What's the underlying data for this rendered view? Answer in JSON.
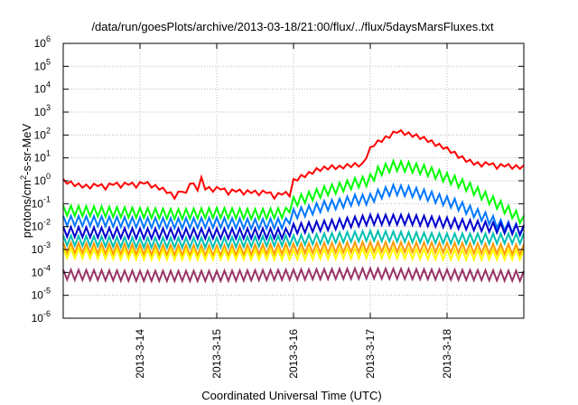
{
  "chart_data": {
    "type": "line",
    "title": "/data/run/goesPlots/archive/2013-03-18/21:00/flux/../flux/5daysMarsFluxes.txt",
    "xlabel": "Coordinated Universal Time (UTC)",
    "ylabel": {
      "prefix": "protons/cm",
      "sup": "2",
      "suffix": "-s-sr-MeV"
    },
    "yscale": "log",
    "ylim": [
      1e-06,
      1000000.0
    ],
    "xlim": [
      0,
      6
    ],
    "grid": true,
    "x_ticks": [
      {
        "value": 1,
        "label": "2013-3-14"
      },
      {
        "value": 2,
        "label": "2013-3-15"
      },
      {
        "value": 3,
        "label": "2013-3-16"
      },
      {
        "value": 4,
        "label": "2013-3-17"
      },
      {
        "value": 5,
        "label": "2013-3-18"
      }
    ],
    "y_ticks": [
      {
        "value": 1e-06,
        "base": "10",
        "exp": "-6"
      },
      {
        "value": 1e-05,
        "base": "10",
        "exp": "-5"
      },
      {
        "value": 0.0001,
        "base": "10",
        "exp": "-4"
      },
      {
        "value": 0.001,
        "base": "10",
        "exp": "-3"
      },
      {
        "value": 0.01,
        "base": "10",
        "exp": "-2"
      },
      {
        "value": 0.1,
        "base": "10",
        "exp": "-1"
      },
      {
        "value": 1,
        "base": "10",
        "exp": "0"
      },
      {
        "value": 10,
        "base": "10",
        "exp": "1"
      },
      {
        "value": 100,
        "base": "10",
        "exp": "2"
      },
      {
        "value": 1000,
        "base": "10",
        "exp": "3"
      },
      {
        "value": 10000,
        "base": "10",
        "exp": "4"
      },
      {
        "value": 100000,
        "base": "10",
        "exp": "5"
      },
      {
        "value": 1000000,
        "base": "10",
        "exp": "6"
      }
    ],
    "series": [
      {
        "color": "#ff0000",
        "x": [
          0,
          0.15,
          0.25,
          0.35,
          0.45,
          0.55,
          0.65,
          0.75,
          0.85,
          0.95,
          1.05,
          1.15,
          1.25,
          1.35,
          1.45,
          1.55,
          1.6,
          1.65,
          1.75,
          1.8,
          1.85,
          1.95,
          2.05,
          2.15,
          2.25,
          2.35,
          2.45,
          2.55,
          2.65,
          2.75,
          2.85,
          2.95,
          3.0,
          3.1,
          3.2,
          3.3,
          3.4,
          3.5,
          3.6,
          3.7,
          3.8,
          3.9,
          3.98,
          4.05,
          4.15,
          4.25,
          4.35,
          4.45,
          4.55,
          4.65,
          4.75,
          4.85,
          4.95,
          5.05,
          5.15,
          5.25,
          5.35,
          5.45,
          5.55,
          5.65,
          5.75,
          5.85,
          6.0
        ],
        "y": [
          1.0,
          0.7,
          0.6,
          0.55,
          0.7,
          0.5,
          0.8,
          0.6,
          0.8,
          0.6,
          0.9,
          0.6,
          0.5,
          0.35,
          0.2,
          0.4,
          0.25,
          0.9,
          0.45,
          1.2,
          0.5,
          0.4,
          0.5,
          0.3,
          0.4,
          0.3,
          0.35,
          0.28,
          0.35,
          0.2,
          0.3,
          0.25,
          1.0,
          1.5,
          2.0,
          3.0,
          3.5,
          4.0,
          3.8,
          4.5,
          5.0,
          5.0,
          20,
          40,
          60,
          90,
          150,
          120,
          100,
          80,
          60,
          40,
          30,
          20,
          12,
          8,
          6,
          5,
          6,
          4,
          5,
          4,
          4
        ]
      },
      {
        "color": "#00ff00",
        "x": [
          0,
          0.5,
          1.0,
          1.5,
          2.0,
          2.5,
          2.9,
          3.0,
          3.2,
          3.4,
          3.6,
          3.8,
          3.98,
          4.1,
          4.3,
          4.5,
          4.7,
          4.9,
          5.1,
          5.3,
          5.5,
          5.7,
          5.9,
          6.0
        ],
        "y": [
          0.05,
          0.045,
          0.04,
          0.035,
          0.04,
          0.035,
          0.04,
          0.12,
          0.2,
          0.35,
          0.5,
          0.8,
          1.0,
          2.5,
          4.5,
          4.0,
          3.0,
          1.8,
          1.0,
          0.5,
          0.2,
          0.08,
          0.03,
          0.018
        ]
      },
      {
        "color": "#0077ff",
        "x": [
          0,
          0.5,
          1.0,
          1.5,
          2.0,
          2.5,
          2.9,
          3.0,
          3.2,
          3.4,
          3.6,
          3.8,
          3.98,
          4.1,
          4.3,
          4.5,
          4.7,
          4.9,
          5.1,
          5.3,
          5.5,
          5.7,
          5.9,
          6.0
        ],
        "y": [
          0.018,
          0.017,
          0.015,
          0.014,
          0.015,
          0.013,
          0.014,
          0.035,
          0.05,
          0.08,
          0.1,
          0.15,
          0.15,
          0.25,
          0.4,
          0.35,
          0.25,
          0.16,
          0.1,
          0.05,
          0.025,
          0.012,
          0.008,
          0.006
        ]
      },
      {
        "color": "#0000cc",
        "x": [
          0,
          1.0,
          2.0,
          2.9,
          3.0,
          3.5,
          4.0,
          4.5,
          5.0,
          5.5,
          6.0
        ],
        "y": [
          0.006,
          0.005,
          0.005,
          0.005,
          0.008,
          0.012,
          0.02,
          0.02,
          0.015,
          0.01,
          0.007
        ]
      },
      {
        "color": "#00c0b0",
        "x": [
          0,
          1.0,
          2.0,
          3.0,
          4.0,
          5.0,
          6.0
        ],
        "y": [
          0.0025,
          0.002,
          0.002,
          0.0025,
          0.004,
          0.003,
          0.003
        ]
      },
      {
        "color": "#ff9900",
        "x": [
          0,
          1.0,
          2.0,
          3.0,
          4.0,
          5.0,
          6.0
        ],
        "y": [
          0.0012,
          0.001,
          0.0009,
          0.0011,
          0.0013,
          0.0012,
          0.001
        ]
      },
      {
        "color": "#ffff00",
        "x": [
          0,
          1.0,
          2.0,
          3.0,
          4.0,
          5.0,
          6.0
        ],
        "y": [
          0.0007,
          0.0006,
          0.0006,
          0.0006,
          0.0007,
          0.0006,
          0.0006
        ]
      },
      {
        "color": "#993366",
        "x": [
          0,
          1.0,
          2.0,
          3.0,
          4.0,
          5.0,
          6.0
        ],
        "y": [
          8e-05,
          7e-05,
          7e-05,
          8e-05,
          9e-05,
          8e-05,
          7e-05
        ]
      }
    ]
  }
}
